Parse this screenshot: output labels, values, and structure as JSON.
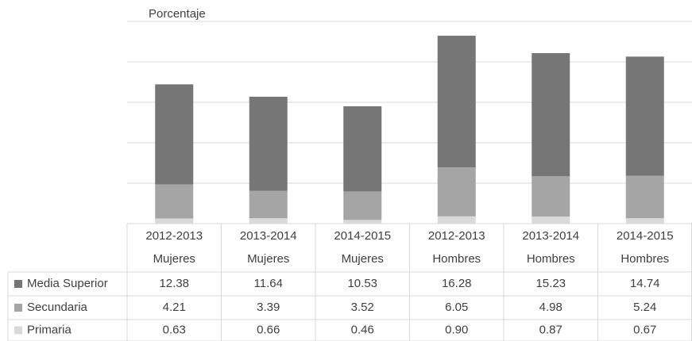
{
  "chart_data": {
    "type": "bar",
    "stacked": true,
    "title": "Porcentaje",
    "categories": [
      [
        "2012-2013",
        "Mujeres"
      ],
      [
        "2013-2014",
        "Mujeres"
      ],
      [
        "2014-2015",
        "Mujeres"
      ],
      [
        "2012-2013",
        "Hombres"
      ],
      [
        "2013-2014",
        "Hombres"
      ],
      [
        "2014-2015",
        "Hombres"
      ]
    ],
    "series": [
      {
        "name": "Media Superior",
        "color": "#767676",
        "values": [
          12.38,
          11.64,
          10.53,
          16.28,
          15.23,
          14.74
        ],
        "value_labels": [
          "12.38",
          "11.64",
          "10.53",
          "16.28",
          "15.23",
          "14.74"
        ]
      },
      {
        "name": "Secundaria",
        "color": "#a5a5a5",
        "values": [
          4.21,
          3.39,
          3.52,
          6.05,
          4.98,
          5.24
        ],
        "value_labels": [
          "4.21",
          "3.39",
          "3.52",
          "6.05",
          "4.98",
          "5.24"
        ]
      },
      {
        "name": "Primaria",
        "color": "#d9d9d9",
        "values": [
          0.63,
          0.66,
          0.46,
          0.9,
          0.87,
          0.67
        ],
        "value_labels": [
          "0.63",
          "0.66",
          "0.46",
          "0.90",
          "0.87",
          "0.67"
        ]
      }
    ],
    "ylim": [
      0,
      25
    ],
    "yticks": [
      0,
      5,
      10,
      15,
      20,
      25
    ],
    "grid": true
  }
}
